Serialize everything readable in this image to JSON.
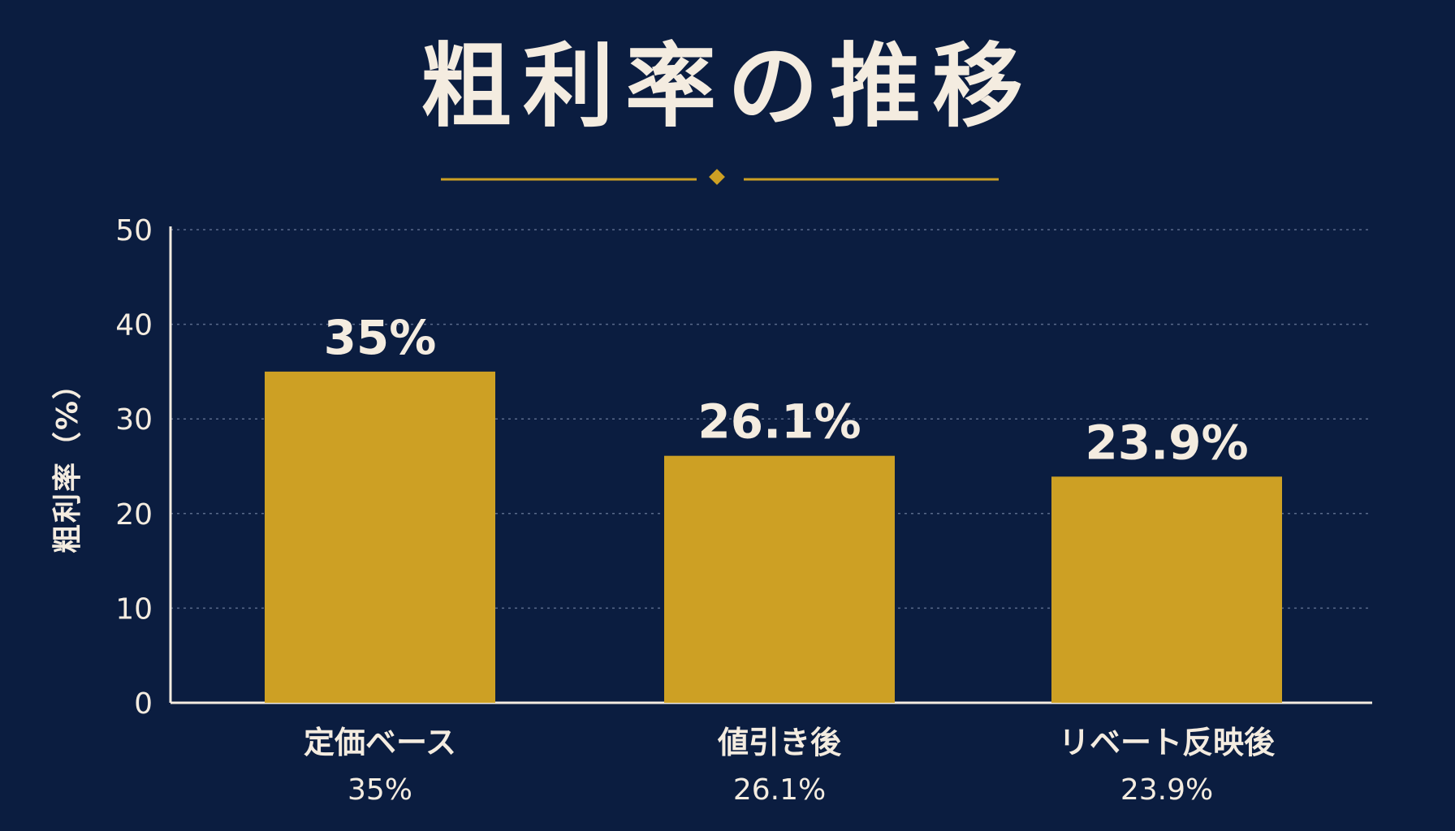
{
  "colors": {
    "background": "#0b1d40",
    "bar": "#cda024",
    "text": "#f4ece0",
    "accent": "#cda024",
    "gridline": "#5a6a8a",
    "axis": "#f4ece0"
  },
  "chart_data": {
    "type": "bar",
    "title": "粗利率の推移",
    "xlabel": "",
    "ylabel": "粗利率（%）",
    "ylim": [
      0,
      50
    ],
    "yticks": [
      0,
      10,
      20,
      30,
      40,
      50
    ],
    "grid": true,
    "categories": [
      "定価ベース",
      "値引き後",
      "リベート反映後"
    ],
    "category_sublabels": [
      "35%",
      "26.1%",
      "23.9%"
    ],
    "values": [
      35,
      26.1,
      23.9
    ],
    "data_labels": [
      "35%",
      "26.1%",
      "23.9%"
    ]
  }
}
